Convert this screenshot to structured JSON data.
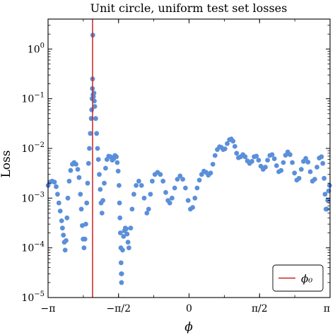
{
  "chart_data": {
    "type": "scatter",
    "title": "Unit circle, uniform test set losses",
    "xlabel": "ϕ",
    "ylabel": "Loss",
    "yscale": "log",
    "xlim": [
      -3.14159,
      3.14159
    ],
    "ylim": [
      1e-05,
      4
    ],
    "xticks": [
      {
        "value": -3.14159,
        "label": "−π"
      },
      {
        "value": -1.5708,
        "label": "−π/2"
      },
      {
        "value": 0,
        "label": "0"
      },
      {
        "value": 1.5708,
        "label": "π/2"
      },
      {
        "value": 3.14159,
        "label": "π"
      }
    ],
    "yticks": [
      {
        "value": 1e-05,
        "base": "10",
        "exp": "−5"
      },
      {
        "value": 0.0001,
        "base": "10",
        "exp": "−4"
      },
      {
        "value": 0.001,
        "base": "10",
        "exp": "−3"
      },
      {
        "value": 0.01,
        "base": "10",
        "exp": "−2"
      },
      {
        "value": 0.1,
        "base": "10",
        "exp": "−1"
      },
      {
        "value": 1,
        "base": "10",
        "exp": "0"
      }
    ],
    "marker_color": "#5b8fd9",
    "vline": {
      "x": -2.15,
      "color": "#cc2222",
      "legend_label": "ϕ₀"
    },
    "legend_position": "lower-right",
    "grid": false,
    "points": [
      [
        -3.14,
        0.0018
      ],
      [
        -3.1,
        0.0021
      ],
      [
        -3.05,
        0.0022
      ],
      [
        -3.0,
        0.0021
      ],
      [
        -2.96,
        0.0017
      ],
      [
        -2.93,
        0.0012
      ],
      [
        -2.9,
        0.0008
      ],
      [
        -2.87,
        0.00055
      ],
      [
        -2.84,
        0.00035
      ],
      [
        -2.82,
        0.00025
      ],
      [
        -2.8,
        0.00018
      ],
      [
        -2.78,
        0.00013
      ],
      [
        -2.76,
        9e-05
      ],
      [
        -2.74,
        0.00014
      ],
      [
        -2.72,
        0.0004
      ],
      [
        -2.7,
        0.001
      ],
      [
        -2.67,
        0.0022
      ],
      [
        -2.64,
        0.0036
      ],
      [
        -2.6,
        0.0048
      ],
      [
        -2.56,
        0.0052
      ],
      [
        -2.52,
        0.0048
      ],
      [
        -2.48,
        0.0038
      ],
      [
        -2.45,
        0.0026
      ],
      [
        -2.42,
        0.0012
      ],
      [
        -2.4,
        0.0006
      ],
      [
        -2.38,
        0.00028
      ],
      [
        -2.36,
        0.00015
      ],
      [
        -2.34,
        0.0001
      ],
      [
        -2.32,
        0.00015
      ],
      [
        -2.3,
        0.0003
      ],
      [
        -2.28,
        0.0008
      ],
      [
        -2.26,
        0.002
      ],
      [
        -2.24,
        0.005
      ],
      [
        -2.22,
        0.01
      ],
      [
        -2.2,
        0.02
      ],
      [
        -2.18,
        0.04
      ],
      [
        -2.17,
        0.06
      ],
      [
        -2.16,
        0.1
      ],
      [
        -2.155,
        0.16
      ],
      [
        -2.15,
        0.25
      ],
      [
        -2.145,
        1.9
      ],
      [
        -2.14,
        0.12
      ],
      [
        -2.13,
        0.11
      ],
      [
        -2.12,
        0.13
      ],
      [
        -2.11,
        0.09
      ],
      [
        -2.1,
        0.07
      ],
      [
        -2.08,
        0.04
      ],
      [
        -2.06,
        0.02
      ],
      [
        -2.04,
        0.01
      ],
      [
        -2.02,
        0.006
      ],
      [
        -2.0,
        0.003
      ],
      [
        -1.98,
        0.0015
      ],
      [
        -1.96,
        0.0008
      ],
      [
        -1.94,
        0.0005
      ],
      [
        -1.92,
        0.0009
      ],
      [
        -1.89,
        0.002
      ],
      [
        -1.86,
        0.004
      ],
      [
        -1.83,
        0.006
      ],
      [
        -1.79,
        0.007
      ],
      [
        -1.75,
        0.0068
      ],
      [
        -1.71,
        0.0058
      ],
      [
        -1.68,
        0.0062
      ],
      [
        -1.65,
        0.0072
      ],
      [
        -1.62,
        0.0068
      ],
      [
        -1.6,
        0.0052
      ],
      [
        -1.58,
        0.0035
      ],
      [
        -1.56,
        0.0018
      ],
      [
        -1.55,
        0.0008
      ],
      [
        -1.54,
        0.0004
      ],
      [
        -1.53,
        0.0002
      ],
      [
        -1.52,
        0.0001
      ],
      [
        -1.515,
        5e-05
      ],
      [
        -1.51,
        3e-05
      ],
      [
        -1.505,
        2e-05
      ],
      [
        -1.5,
        3e-05
      ],
      [
        -1.48,
        9e-05
      ],
      [
        -1.46,
        0.00017
      ],
      [
        -1.44,
        0.00022
      ],
      [
        -1.42,
        0.00025
      ],
      [
        -1.4,
        0.00024
      ],
      [
        -1.38,
        0.00019
      ],
      [
        -1.36,
        0.00013
      ],
      [
        -1.34,
        0.0001
      ],
      [
        -1.3,
        0.00025
      ],
      [
        -1.27,
        0.0006
      ],
      [
        -1.23,
        0.0012
      ],
      [
        -1.18,
        0.0018
      ],
      [
        -1.12,
        0.0022
      ],
      [
        -1.06,
        0.0018
      ],
      [
        -1.0,
        0.001
      ],
      [
        -0.94,
        0.0005
      ],
      [
        -0.9,
        0.0006
      ],
      [
        -0.86,
        0.0012
      ],
      [
        -0.82,
        0.0022
      ],
      [
        -0.76,
        0.003
      ],
      [
        -0.7,
        0.0033
      ],
      [
        -0.64,
        0.003
      ],
      [
        -0.58,
        0.0022
      ],
      [
        -0.52,
        0.0013
      ],
      [
        -0.47,
        0.0009
      ],
      [
        -0.43,
        0.0008
      ],
      [
        -0.38,
        0.001
      ],
      [
        -0.32,
        0.0016
      ],
      [
        -0.26,
        0.0024
      ],
      [
        -0.2,
        0.0028
      ],
      [
        -0.14,
        0.0024
      ],
      [
        -0.08,
        0.0016
      ],
      [
        -0.02,
        0.0009
      ],
      [
        0.03,
        0.0006
      ],
      [
        0.08,
        0.00065
      ],
      [
        0.13,
        0.001
      ],
      [
        0.18,
        0.0016
      ],
      [
        0.23,
        0.0023
      ],
      [
        0.28,
        0.003
      ],
      [
        0.33,
        0.0035
      ],
      [
        0.38,
        0.0033
      ],
      [
        0.43,
        0.0029
      ],
      [
        0.48,
        0.0032
      ],
      [
        0.53,
        0.0048
      ],
      [
        0.58,
        0.0072
      ],
      [
        0.63,
        0.0095
      ],
      [
        0.68,
        0.0108
      ],
      [
        0.72,
        0.0105
      ],
      [
        0.76,
        0.0095
      ],
      [
        0.8,
        0.0098
      ],
      [
        0.85,
        0.0125
      ],
      [
        0.9,
        0.015
      ],
      [
        0.94,
        0.0155
      ],
      [
        0.98,
        0.014
      ],
      [
        1.02,
        0.011
      ],
      [
        1.06,
        0.008
      ],
      [
        1.1,
        0.0065
      ],
      [
        1.15,
        0.0068
      ],
      [
        1.2,
        0.0075
      ],
      [
        1.25,
        0.0068
      ],
      [
        1.3,
        0.0056
      ],
      [
        1.35,
        0.005
      ],
      [
        1.4,
        0.0055
      ],
      [
        1.45,
        0.0068
      ],
      [
        1.5,
        0.007
      ],
      [
        1.55,
        0.0058
      ],
      [
        1.6,
        0.0044
      ],
      [
        1.65,
        0.0038
      ],
      [
        1.7,
        0.0042
      ],
      [
        1.75,
        0.0058
      ],
      [
        1.8,
        0.0072
      ],
      [
        1.85,
        0.0075
      ],
      [
        1.9,
        0.0062
      ],
      [
        1.95,
        0.0045
      ],
      [
        2.0,
        0.0034
      ],
      [
        2.05,
        0.0036
      ],
      [
        2.1,
        0.0052
      ],
      [
        2.15,
        0.0073
      ],
      [
        2.2,
        0.0085
      ],
      [
        2.25,
        0.0075
      ],
      [
        2.3,
        0.0052
      ],
      [
        2.35,
        0.0032
      ],
      [
        2.4,
        0.0023
      ],
      [
        2.45,
        0.0025
      ],
      [
        2.5,
        0.0038
      ],
      [
        2.55,
        0.0055
      ],
      [
        2.6,
        0.0063
      ],
      [
        2.65,
        0.0053
      ],
      [
        2.7,
        0.0034
      ],
      [
        2.75,
        0.0022
      ],
      [
        2.8,
        0.0024
      ],
      [
        2.85,
        0.0042
      ],
      [
        2.9,
        0.0064
      ],
      [
        2.95,
        0.0068
      ],
      [
        2.98,
        0.005
      ],
      [
        3.01,
        0.0025
      ],
      [
        3.03,
        0.0012
      ],
      [
        3.05,
        0.0006
      ],
      [
        3.07,
        0.0006
      ],
      [
        3.09,
        0.0009
      ],
      [
        3.11,
        0.0014
      ],
      [
        3.13,
        0.0018
      ]
    ]
  }
}
